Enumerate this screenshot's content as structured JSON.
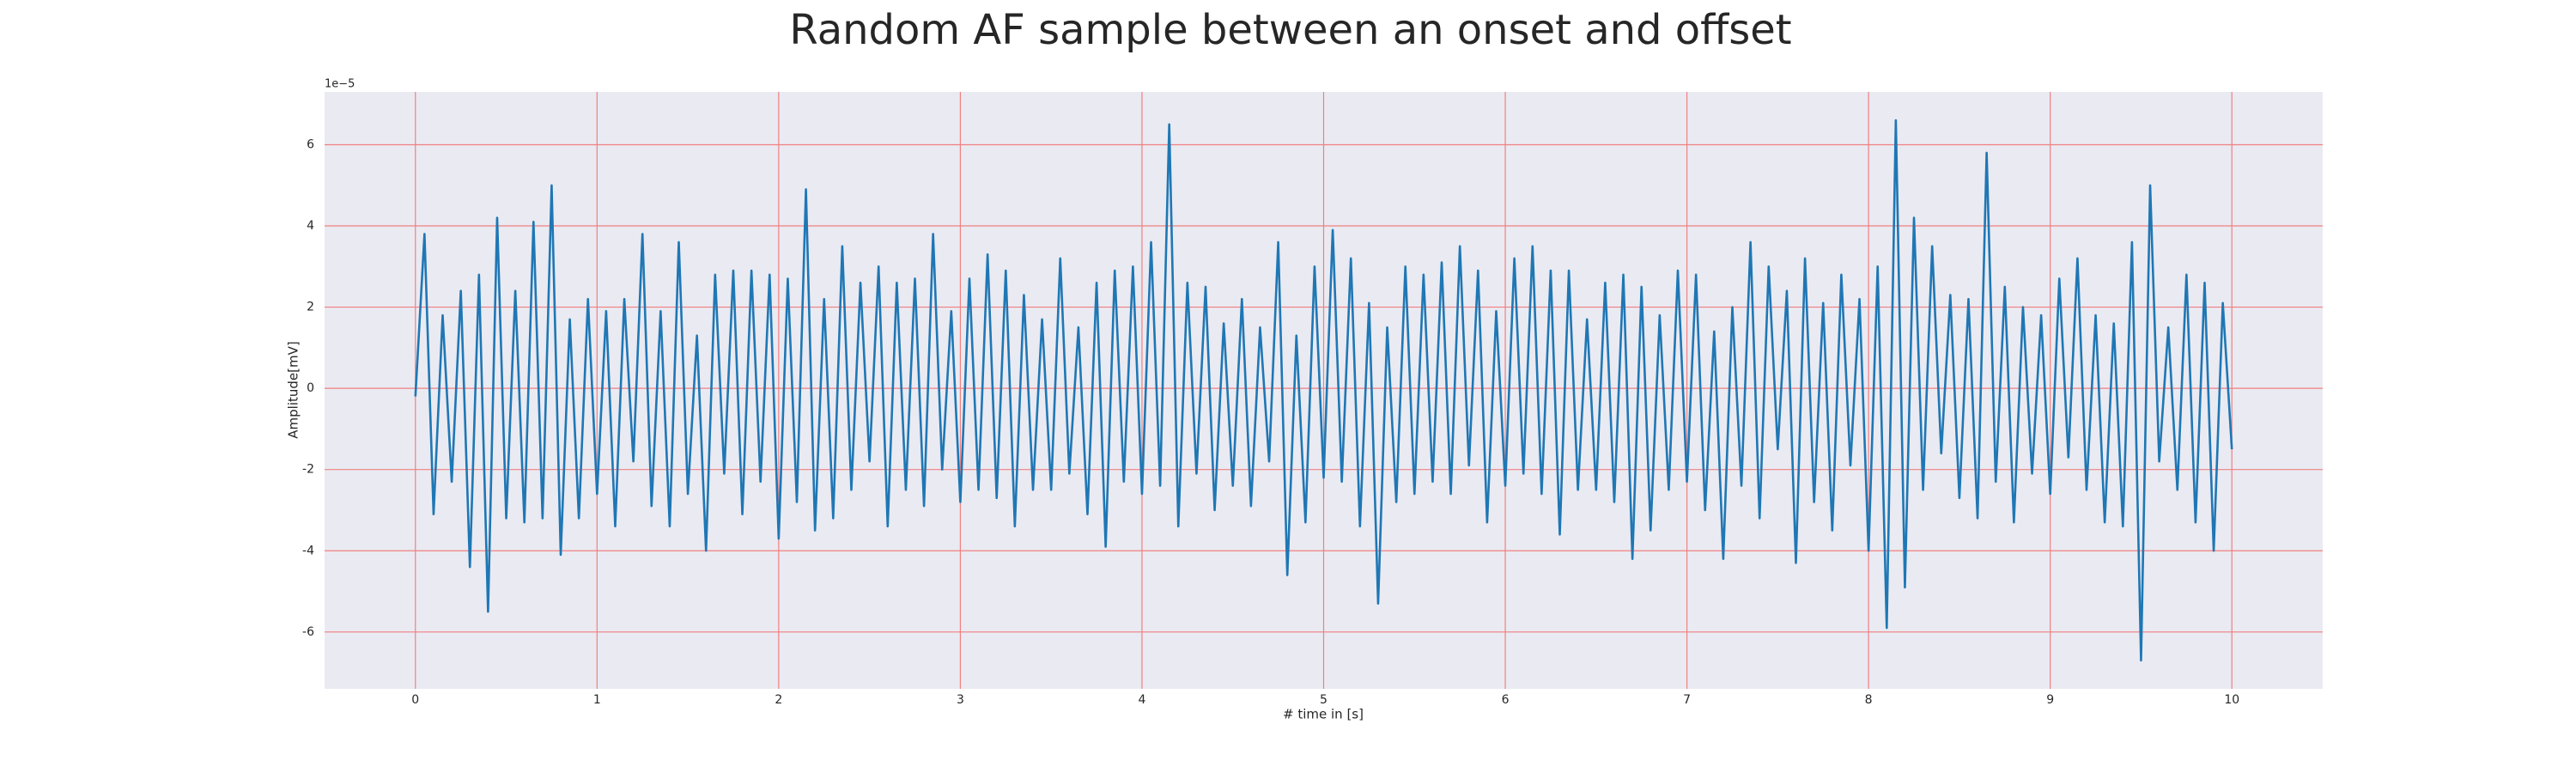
{
  "chart_data": {
    "type": "line",
    "title": "Random AF sample between an onset and offset",
    "xlabel": "# time in [s]",
    "ylabel": "Amplitude[mV]",
    "y_offset_label": "1e−5",
    "x": [
      0,
      0.05,
      0.1,
      0.15,
      0.2,
      0.25,
      0.3,
      0.35,
      0.4,
      0.45,
      0.5,
      0.55,
      0.6,
      0.65,
      0.7,
      0.75,
      0.8,
      0.85,
      0.9,
      0.95,
      1,
      1.05,
      1.1,
      1.15,
      1.2,
      1.25,
      1.3,
      1.35,
      1.4,
      1.45,
      1.5,
      1.55,
      1.6,
      1.65,
      1.7,
      1.75,
      1.8,
      1.85,
      1.9,
      1.95,
      2,
      2.05,
      2.1,
      2.15,
      2.2,
      2.25,
      2.3,
      2.35,
      2.4,
      2.45,
      2.5,
      2.55,
      2.6,
      2.65,
      2.7,
      2.75,
      2.8,
      2.85,
      2.9,
      2.95,
      3,
      3.05,
      3.1,
      3.15,
      3.2,
      3.25,
      3.3,
      3.35,
      3.4,
      3.45,
      3.5,
      3.55,
      3.6,
      3.65,
      3.7,
      3.75,
      3.8,
      3.85,
      3.9,
      3.95,
      4,
      4.05,
      4.1,
      4.15,
      4.2,
      4.25,
      4.3,
      4.35,
      4.4,
      4.45,
      4.5,
      4.55,
      4.6,
      4.65,
      4.7,
      4.75,
      4.8,
      4.85,
      4.9,
      4.95,
      5,
      5.05,
      5.1,
      5.15,
      5.2,
      5.25,
      5.3,
      5.35,
      5.4,
      5.45,
      5.5,
      5.55,
      5.6,
      5.65,
      5.7,
      5.75,
      5.8,
      5.85,
      5.9,
      5.95,
      6,
      6.05,
      6.1,
      6.15,
      6.2,
      6.25,
      6.3,
      6.35,
      6.4,
      6.45,
      6.5,
      6.55,
      6.6,
      6.65,
      6.7,
      6.75,
      6.8,
      6.85,
      6.9,
      6.95,
      7,
      7.05,
      7.1,
      7.15,
      7.2,
      7.25,
      7.3,
      7.35,
      7.4,
      7.45,
      7.5,
      7.55,
      7.6,
      7.65,
      7.7,
      7.75,
      7.8,
      7.85,
      7.9,
      7.95,
      8,
      8.05,
      8.1,
      8.15,
      8.2,
      8.25,
      8.3,
      8.35,
      8.4,
      8.45,
      8.5,
      8.55,
      8.6,
      8.65,
      8.7,
      8.75,
      8.8,
      8.85,
      8.9,
      8.95,
      9,
      9.05,
      9.1,
      9.15,
      9.2,
      9.25,
      9.3,
      9.35,
      9.4,
      9.45,
      9.5,
      9.55,
      9.6,
      9.65,
      9.7,
      9.75,
      9.8,
      9.85,
      9.9,
      9.95,
      10
    ],
    "series": [
      {
        "name": "AF sample",
        "color": "#1f77b4",
        "values": [
          -0.2,
          3.8,
          -3.1,
          1.8,
          -2.3,
          2.4,
          -4.4,
          2.8,
          -5.5,
          4.2,
          -3.2,
          2.4,
          -3.3,
          4.1,
          -3.2,
          5.0,
          -4.1,
          1.7,
          -3.2,
          2.2,
          -2.6,
          1.9,
          -3.4,
          2.2,
          -1.8,
          3.8,
          -2.9,
          1.9,
          -3.4,
          3.6,
          -2.6,
          1.3,
          -4.0,
          2.8,
          -2.1,
          2.9,
          -3.1,
          2.9,
          -2.3,
          2.8,
          -3.7,
          2.7,
          -2.8,
          4.9,
          -3.5,
          2.2,
          -3.2,
          3.5,
          -2.5,
          2.6,
          -1.8,
          3.0,
          -3.4,
          2.6,
          -2.5,
          2.7,
          -2.9,
          3.8,
          -2.0,
          1.9,
          -2.8,
          2.7,
          -2.5,
          3.3,
          -2.7,
          2.9,
          -3.4,
          2.3,
          -2.5,
          1.7,
          -2.5,
          3.2,
          -2.1,
          1.5,
          -3.1,
          2.6,
          -3.9,
          2.9,
          -2.3,
          3.0,
          -2.6,
          3.6,
          -2.4,
          6.5,
          -3.4,
          2.6,
          -2.1,
          2.5,
          -3.0,
          1.6,
          -2.4,
          2.2,
          -2.9,
          1.5,
          -1.8,
          3.6,
          -4.6,
          1.3,
          -3.3,
          3.0,
          -2.2,
          3.9,
          -2.3,
          3.2,
          -3.4,
          2.1,
          -5.3,
          1.5,
          -2.8,
          3.0,
          -2.6,
          2.8,
          -2.3,
          3.1,
          -2.6,
          3.5,
          -1.9,
          2.9,
          -3.3,
          1.9,
          -2.4,
          3.2,
          -2.1,
          3.5,
          -2.6,
          2.9,
          -3.6,
          2.9,
          -2.5,
          1.7,
          -2.5,
          2.6,
          -2.8,
          2.8,
          -4.2,
          2.5,
          -3.5,
          1.8,
          -2.5,
          2.9,
          -2.3,
          2.8,
          -3.0,
          1.4,
          -4.2,
          2.0,
          -2.4,
          3.6,
          -3.2,
          3.0,
          -1.5,
          2.4,
          -4.3,
          3.2,
          -2.8,
          2.1,
          -3.5,
          2.8,
          -1.9,
          2.2,
          -4.0,
          3.0,
          -5.9,
          6.6,
          -4.9,
          4.2,
          -2.5,
          3.5,
          -1.6,
          2.3,
          -2.7,
          2.2,
          -3.2,
          5.8,
          -2.3,
          2.5,
          -3.3,
          2.0,
          -2.1,
          1.8,
          -2.6,
          2.7,
          -1.7,
          3.2,
          -2.5,
          1.8,
          -3.3,
          1.6,
          -3.4,
          3.6,
          -6.7,
          5.0,
          -1.8,
          1.5,
          -2.5,
          2.8,
          -3.3,
          2.6,
          -4.0,
          2.1,
          -1.5
        ]
      }
    ],
    "xlim": [
      -0.5,
      10.5
    ],
    "ylim": [
      -7.4,
      7.3
    ],
    "xticks": [
      0,
      1,
      2,
      3,
      4,
      5,
      6,
      7,
      8,
      9,
      10
    ],
    "yticks": [
      -6,
      -4,
      -2,
      0,
      2,
      4,
      6
    ],
    "grid": true,
    "grid_color": "#f08080",
    "background": "#eaeaf2"
  }
}
